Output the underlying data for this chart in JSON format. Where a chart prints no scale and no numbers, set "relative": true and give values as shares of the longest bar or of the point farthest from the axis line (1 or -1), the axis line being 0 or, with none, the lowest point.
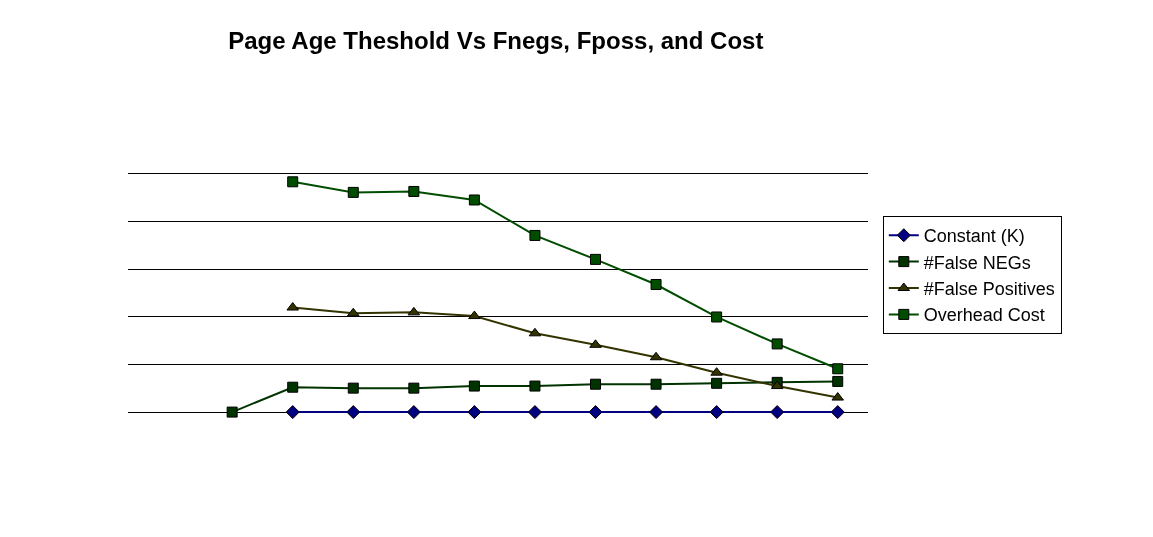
{
  "chart_data": {
    "type": "line",
    "title": "Page Age Theshold Vs Fnegs, Fposs, and Cost",
    "relative": true,
    "grid": "y",
    "legend": "right",
    "line_style": "solid",
    "categories": [
      null,
      null,
      null,
      null,
      null,
      null,
      null,
      null,
      null,
      null,
      null
    ],
    "series": [
      {
        "name": "Constant (K)",
        "color": "#000080",
        "marker": "diamond",
        "values": [
          null,
          0,
          0,
          0,
          0,
          0,
          0,
          0,
          0,
          0,
          0
        ]
      },
      {
        "name": "#False NEGs",
        "color": "#003300",
        "marker": "square",
        "values": [
          0,
          0.108,
          0.104,
          0.104,
          0.113,
          0.113,
          0.121,
          0.121,
          0.125,
          0.129,
          0.133
        ]
      },
      {
        "name": "#False Positives",
        "color": "#333300",
        "marker": "triangle",
        "values": [
          null,
          0.454,
          0.429,
          0.433,
          0.417,
          0.342,
          0.292,
          0.238,
          0.171,
          0.113,
          0.063
        ]
      },
      {
        "name": "Overhead Cost",
        "color": "#004d00",
        "marker": "square",
        "values": [
          null,
          1,
          0.954,
          0.958,
          0.921,
          0.767,
          0.663,
          0.554,
          0.413,
          0.296,
          0.188
        ]
      }
    ]
  }
}
